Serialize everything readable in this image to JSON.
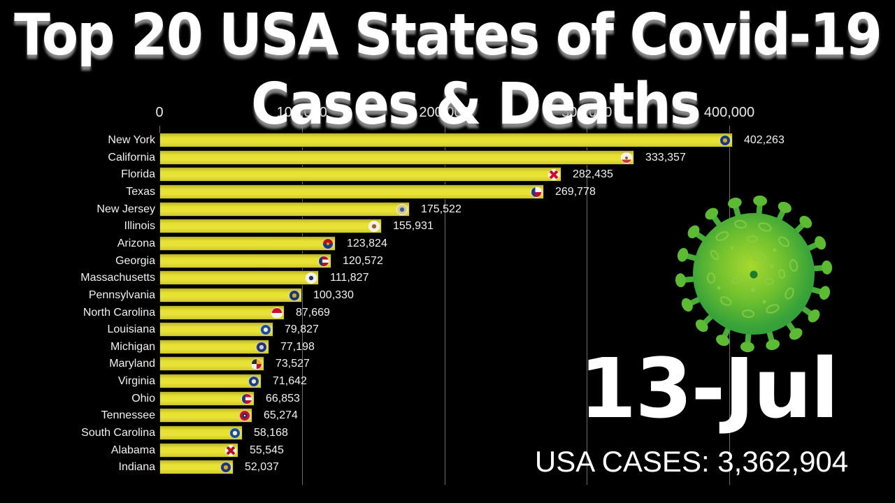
{
  "title": {
    "line1": "Top 20 USA States of Covid-19",
    "line2": "Cases & Deaths"
  },
  "overlay": {
    "date": "13-Jul",
    "usa_cases": "USA CASES: 3,362,904"
  },
  "colors": {
    "background": "#000000",
    "bar": "#ddd731",
    "gridline": "#6e6e6e",
    "text": "#f2f2f2"
  },
  "virus_icon": {
    "body_center": "#a8d92d",
    "body_mid": "#6fc02f",
    "body_outer": "#3aa439",
    "body_edge": "#2e9a3e",
    "spike": "#47ad36",
    "spike_tip": "#5cbb33",
    "spot": "#8ccf45",
    "core": "#1c7c2b"
  },
  "chart_data": {
    "type": "bar",
    "orientation": "horizontal",
    "title": "Top 20 USA States of Covid-19 Cases & Deaths",
    "date": "13-Jul",
    "usa_total_cases": 3362904,
    "xlim": [
      0,
      400000
    ],
    "grid": true,
    "x_ticks": [
      {
        "value": 0,
        "label": "0"
      },
      {
        "value": 100000,
        "label": "100,000"
      },
      {
        "value": 200000,
        "label": "200,000"
      },
      {
        "value": 300000,
        "label": "300,000"
      },
      {
        "value": 400000,
        "label": "400,000"
      }
    ],
    "bars": [
      {
        "state": "New York",
        "value": 402263,
        "label": "402,263",
        "flag": {
          "type": "emblem",
          "colors": [
            "#1d3a6b",
            "#c9a54b"
          ]
        }
      },
      {
        "state": "California",
        "value": 333357,
        "label": "333,357",
        "flag": {
          "type": "split",
          "at": 68,
          "colors": [
            "#f6f1e4",
            "#bf3a32",
            "#8a6138"
          ]
        }
      },
      {
        "state": "Florida",
        "value": 282435,
        "label": "282,435",
        "flag": {
          "type": "saltire",
          "colors": [
            "#ece7da",
            "#c8102e"
          ]
        }
      },
      {
        "state": "Texas",
        "value": 269778,
        "label": "269,778",
        "flag": {
          "type": "vsplit-hsplit",
          "colors": [
            "#1d3a7a",
            "#f5f5f5",
            "#bf0a30"
          ]
        }
      },
      {
        "state": "New Jersey",
        "value": 175522,
        "label": "175,522",
        "flag": {
          "type": "emblem",
          "colors": [
            "#d8c693",
            "#3a5f9e"
          ]
        }
      },
      {
        "state": "Illinois",
        "value": 155931,
        "label": "155,931",
        "flag": {
          "type": "emblem",
          "colors": [
            "#f2efe6",
            "#9a5f33"
          ]
        }
      },
      {
        "state": "Arizona",
        "value": 123824,
        "label": "123,824",
        "flag": {
          "type": "split",
          "colors": [
            "#b5121b",
            "#1d3a7a",
            "#e8871e"
          ]
        }
      },
      {
        "state": "Georgia",
        "value": 120572,
        "label": "120,572",
        "flag": {
          "type": "hoist-stripes",
          "colors": [
            "#1d3a6b",
            "#b5121b",
            "#f2f2f2"
          ]
        }
      },
      {
        "state": "Massachusetts",
        "value": 111827,
        "label": "111,827",
        "flag": {
          "type": "emblem",
          "colors": [
            "#f2efe4",
            "#1d3a6b"
          ]
        }
      },
      {
        "state": "Pennsylvania",
        "value": 100330,
        "label": "100,330",
        "flag": {
          "type": "emblem",
          "colors": [
            "#1d3a6b",
            "#c9a54b"
          ]
        }
      },
      {
        "state": "North Carolina",
        "value": 87669,
        "label": "87,669",
        "flag": {
          "type": "split",
          "colors": [
            "#c8102e",
            "#f2f2f2"
          ]
        }
      },
      {
        "state": "Louisiana",
        "value": 79827,
        "label": "79,827",
        "flag": {
          "type": "emblem",
          "colors": [
            "#1d4f91",
            "#f0ede0"
          ]
        }
      },
      {
        "state": "Michigan",
        "value": 77198,
        "label": "77,198",
        "flag": {
          "type": "emblem",
          "colors": [
            "#25356b",
            "#c5cbe0"
          ]
        }
      },
      {
        "state": "Maryland",
        "value": 73527,
        "label": "73,527",
        "flag": {
          "type": "quarters",
          "colors": [
            "#e8b421",
            "#c8102e",
            "#f2f2f2",
            "#2b2b2b"
          ]
        }
      },
      {
        "state": "Virginia",
        "value": 71642,
        "label": "71,642",
        "flag": {
          "type": "emblem",
          "colors": [
            "#22407c",
            "#e6e6e6"
          ]
        }
      },
      {
        "state": "Ohio",
        "value": 66853,
        "label": "66,853",
        "flag": {
          "type": "hoist-stripes",
          "colors": [
            "#1d3a7a",
            "#c8102e",
            "#f2f2f2"
          ]
        }
      },
      {
        "state": "Tennessee",
        "value": 65274,
        "label": "65,274",
        "flag": {
          "type": "emblem2",
          "colors": [
            "#c8102e",
            "#1d2f6b",
            "#f2f2f2"
          ]
        }
      },
      {
        "state": "South Carolina",
        "value": 58168,
        "label": "58,168",
        "flag": {
          "type": "emblem",
          "colors": [
            "#1d4f91",
            "#f0ede0"
          ]
        }
      },
      {
        "state": "Alabama",
        "value": 55545,
        "label": "55,545",
        "flag": {
          "type": "saltire",
          "colors": [
            "#f0ede6",
            "#b5121b"
          ]
        }
      },
      {
        "state": "Indiana",
        "value": 52037,
        "label": "52,037",
        "flag": {
          "type": "emblem",
          "colors": [
            "#1d3a6b",
            "#d9a531"
          ]
        }
      }
    ]
  }
}
